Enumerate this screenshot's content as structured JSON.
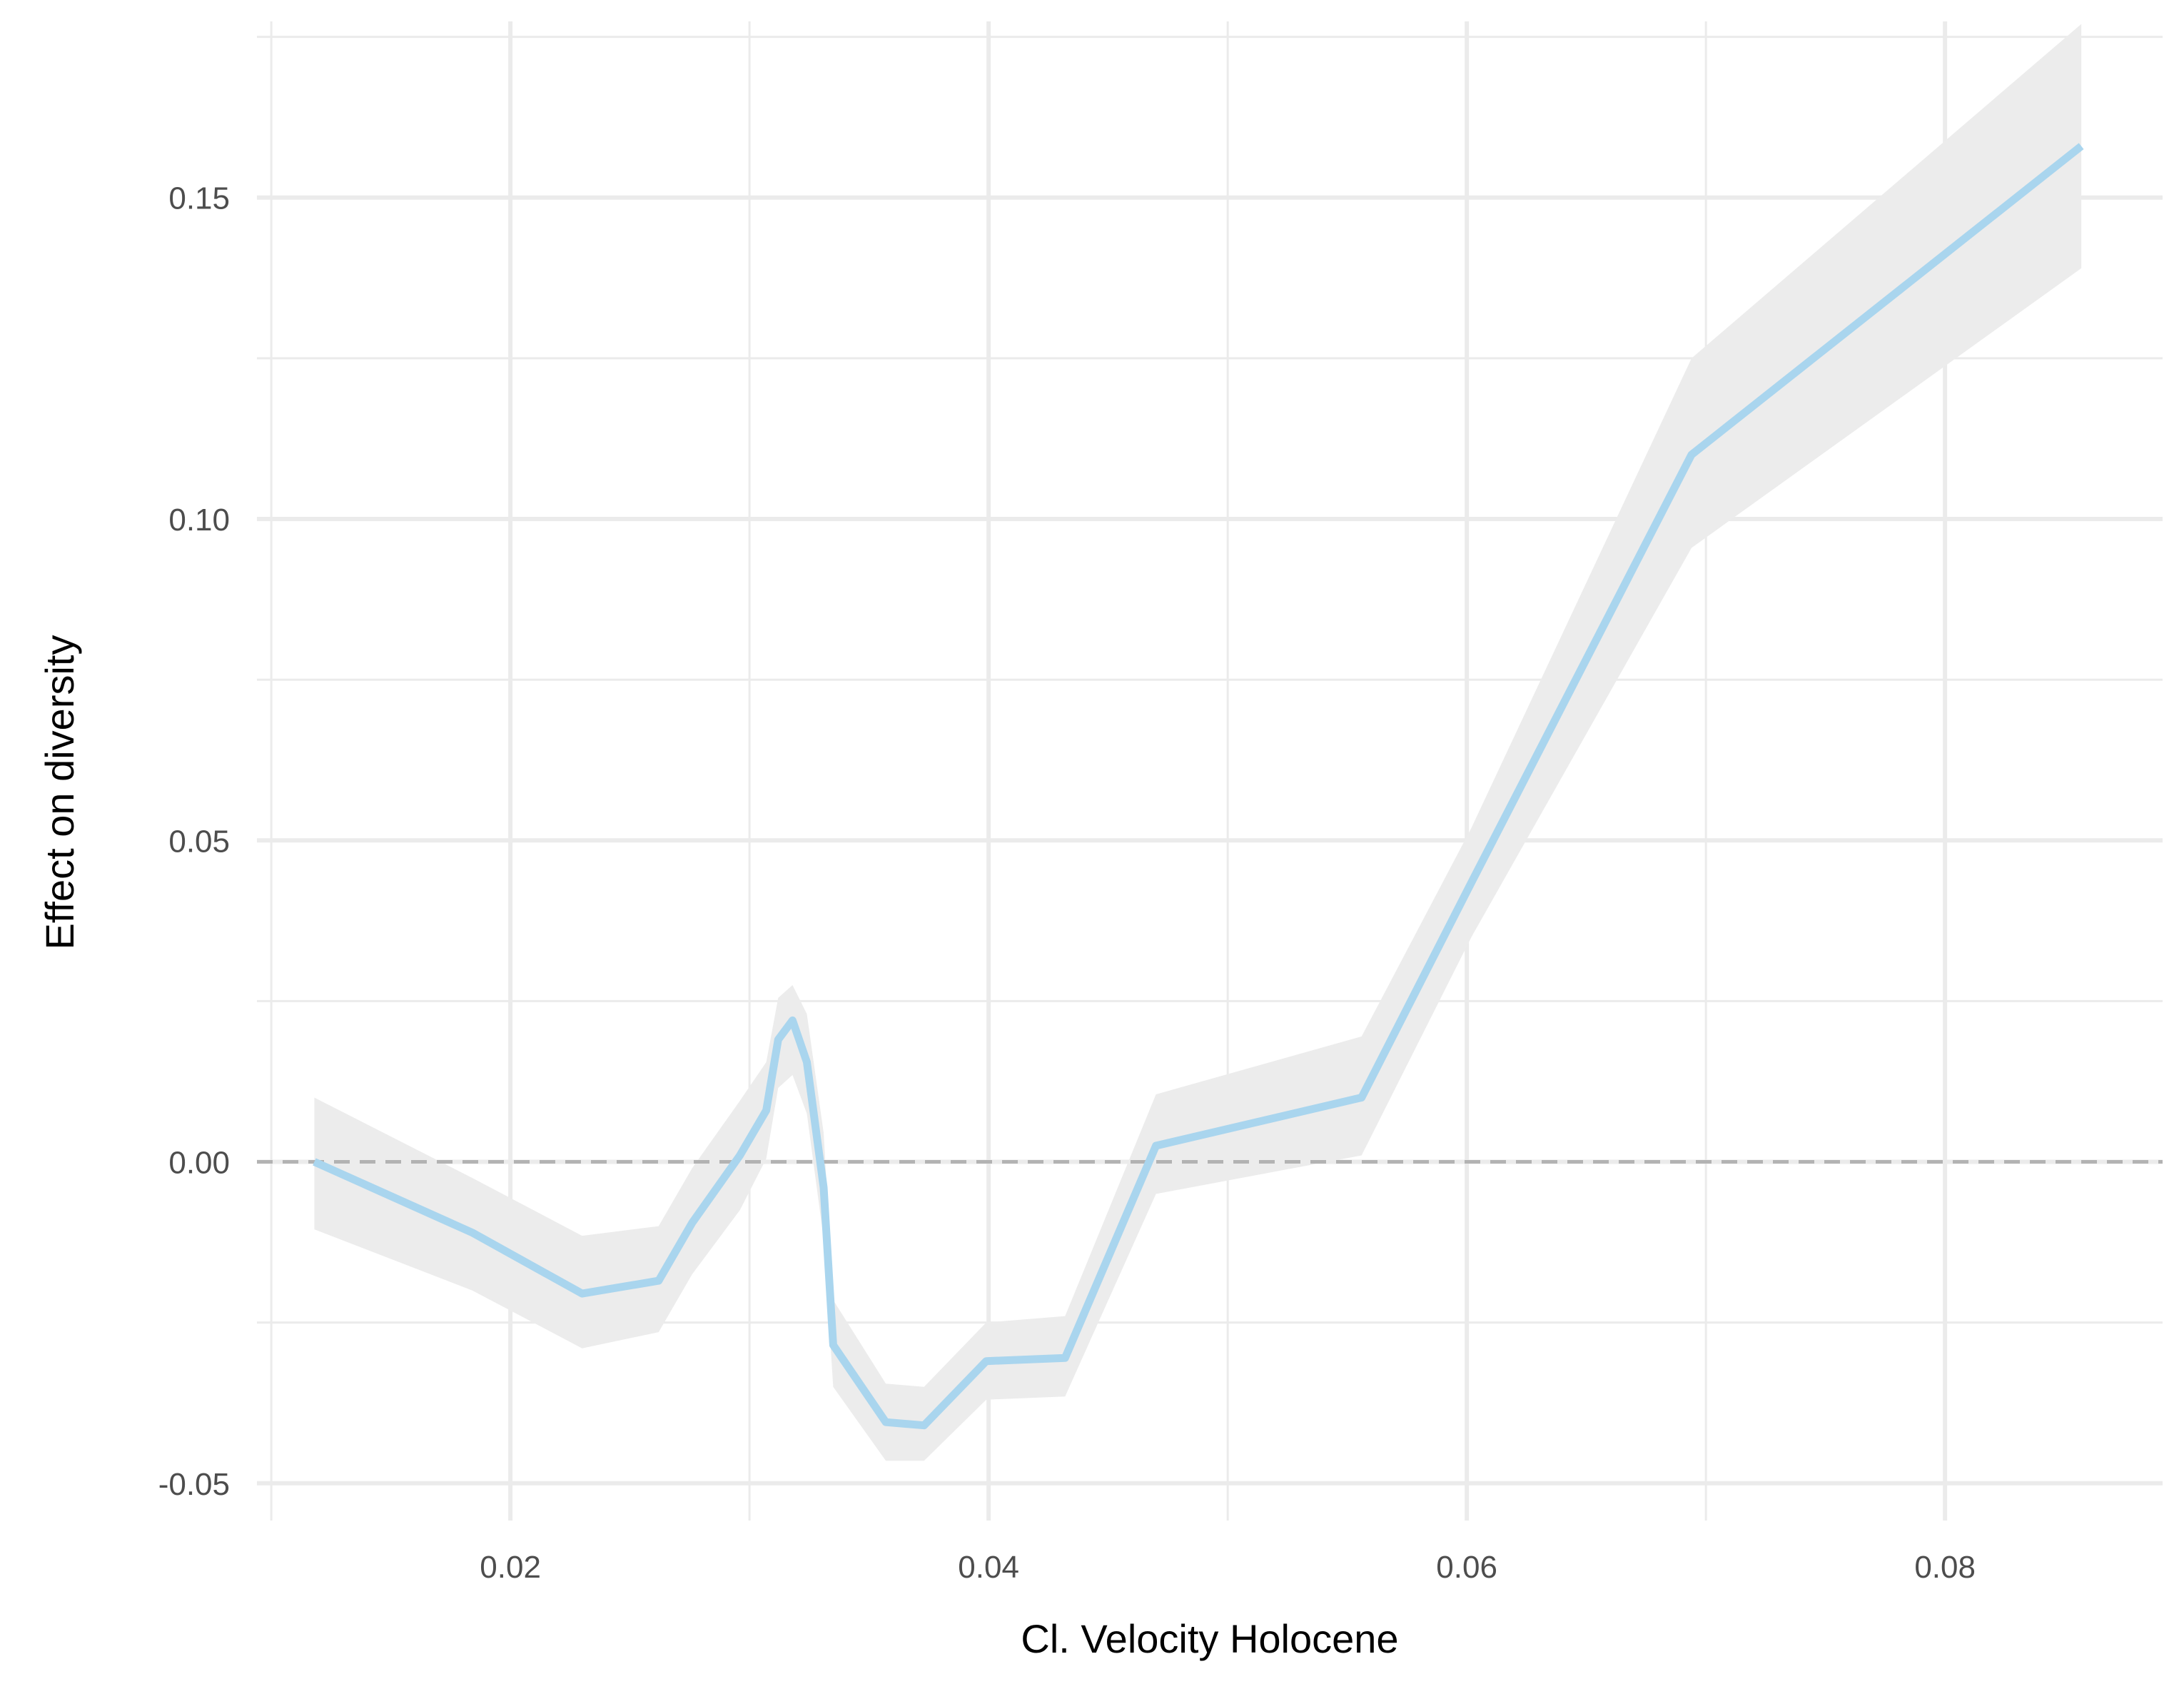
{
  "chart_data": {
    "type": "line",
    "title": "",
    "xlabel": "Cl. Velocity Holocene",
    "ylabel": "Effect on diversity",
    "xlim": [
      0.0094,
      0.0891
    ],
    "ylim": [
      -0.0558,
      0.1774
    ],
    "x_ticks": [
      {
        "value": 0.02,
        "label": "0.02"
      },
      {
        "value": 0.04,
        "label": "0.04"
      },
      {
        "value": 0.06,
        "label": "0.06"
      },
      {
        "value": 0.08,
        "label": "0.08"
      }
    ],
    "y_ticks": [
      {
        "value": -0.05,
        "label": "-0.05"
      },
      {
        "value": 0.0,
        "label": "0.00"
      },
      {
        "value": 0.05,
        "label": "0.05"
      },
      {
        "value": 0.1,
        "label": "0.10"
      },
      {
        "value": 0.15,
        "label": "0.15"
      }
    ],
    "x_minor_ticks": [
      0.01,
      0.03,
      0.05,
      0.07
    ],
    "y_minor_ticks": [
      -0.025,
      0.025,
      0.075,
      0.125,
      0.175
    ],
    "grid": true,
    "reference_line": {
      "y": 0.0,
      "style": "dashed",
      "color": "#b3b3b3"
    },
    "series": [
      {
        "color": "#a9d5ee",
        "band_color": "#ececec",
        "x": [
          0.0118,
          0.0184,
          0.023,
          0.0262,
          0.0276,
          0.0296,
          0.0307,
          0.0312,
          0.0318,
          0.0324,
          0.0331,
          0.0335,
          0.0357,
          0.0373,
          0.0399,
          0.0432,
          0.047,
          0.0556,
          0.0602,
          0.0694,
          0.0857
        ],
        "y": [
          0.0,
          -0.011,
          -0.0205,
          -0.0185,
          -0.0095,
          0.001,
          0.008,
          0.019,
          0.022,
          0.0155,
          -0.004,
          -0.0285,
          -0.0405,
          -0.041,
          -0.031,
          -0.0305,
          0.0025,
          0.01,
          0.0435,
          0.11,
          0.158
        ],
        "lower": [
          -0.0105,
          -0.02,
          -0.029,
          -0.0265,
          -0.0175,
          -0.0075,
          0.0005,
          0.0115,
          0.0135,
          0.0075,
          -0.012,
          -0.035,
          -0.0465,
          -0.0465,
          -0.037,
          -0.0365,
          -0.005,
          0.001,
          0.035,
          0.0955,
          0.139
        ],
        "upper": [
          0.01,
          -0.0025,
          -0.0115,
          -0.01,
          -0.001,
          0.0095,
          0.0155,
          0.0255,
          0.0275,
          0.023,
          0.0045,
          -0.0215,
          -0.0345,
          -0.035,
          -0.025,
          -0.024,
          0.0105,
          0.0195,
          0.052,
          0.125,
          0.177
        ]
      }
    ]
  }
}
